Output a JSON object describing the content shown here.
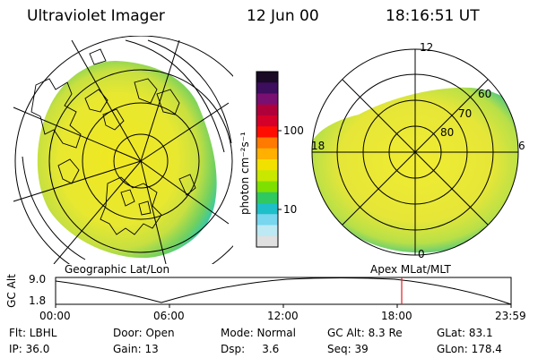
{
  "header": {
    "instrument": "Ultraviolet Imager",
    "date": "12 Jun 00",
    "time": "18:16:51 UT"
  },
  "left_panel": {
    "caption": "Geographic Lat/Lon"
  },
  "right_panel": {
    "caption": "Apex MLat/MLT",
    "mlt_labels": [
      "12",
      "18",
      "6",
      "0"
    ],
    "mlat_labels": [
      "60",
      "70",
      "80"
    ]
  },
  "colorbar": {
    "unit_label": "photon cm⁻²s⁻¹",
    "ticks": [
      "100",
      "10"
    ],
    "colors": [
      "#1a0a25",
      "#3d0d5e",
      "#7a0f72",
      "#b0003a",
      "#d4002a",
      "#ff0d00",
      "#ff7a00",
      "#ffb000",
      "#f2e000",
      "#c8e800",
      "#7ee000",
      "#30c860",
      "#1ebfc8",
      "#78d6ee",
      "#bde9f4",
      "#e0e0e0"
    ]
  },
  "altitude_plot": {
    "y_axis_label": "GC Alt",
    "y_ticks": [
      "9.0",
      "1.8"
    ],
    "x_ticks": [
      "00:00",
      "06:00",
      "12:00",
      "18:00",
      "23:59"
    ],
    "marker_color": "#e02020"
  },
  "status": {
    "row1": {
      "filter": "Flt: LBHL",
      "door": "Door: Open",
      "mode": "Mode: Normal",
      "gc_alt": "GC Alt: 8.3 Re",
      "glat": "GLat:  83.1"
    },
    "row2": {
      "ip": "IP: 36.0",
      "gain": "Gain: 13",
      "dsp": "Dsp:     3.6",
      "seq": "Seq: 39",
      "glon": "GLon: 178.4"
    }
  }
}
